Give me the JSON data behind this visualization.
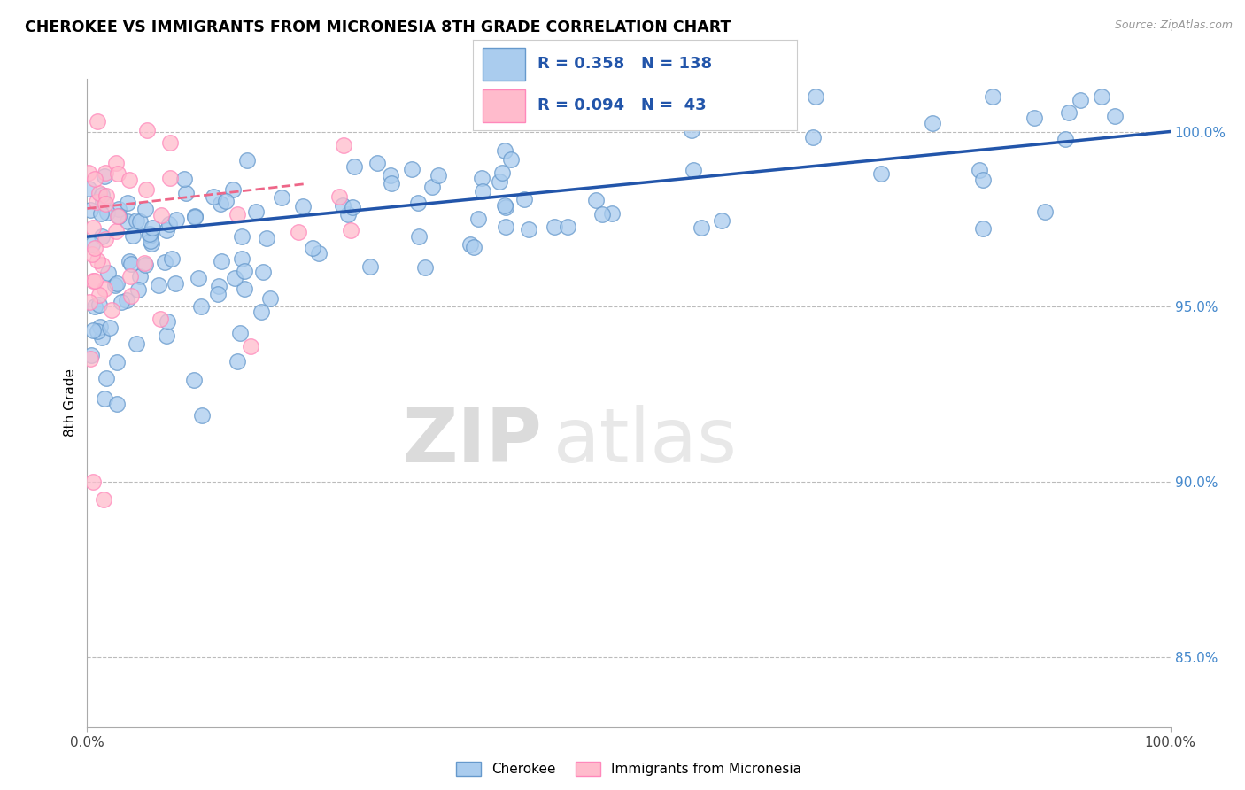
{
  "title": "CHEROKEE VS IMMIGRANTS FROM MICRONESIA 8TH GRADE CORRELATION CHART",
  "source": "Source: ZipAtlas.com",
  "ylabel": "8th Grade",
  "right_yticks": [
    85.0,
    90.0,
    95.0,
    100.0
  ],
  "legend_R1": "0.358",
  "legend_N1": "138",
  "legend_R2": "0.094",
  "legend_N2": " 43",
  "blue_color_face": "#AACCEE",
  "blue_color_edge": "#6699CC",
  "pink_color_face": "#FFBBCC",
  "pink_color_edge": "#FF88BB",
  "blue_line_color": "#2255AA",
  "pink_line_color": "#EE6688",
  "watermark_zip": "ZIP",
  "watermark_atlas": "atlas",
  "xlim": [
    0,
    100
  ],
  "ylim": [
    83.0,
    101.5
  ],
  "blue_trend_start": 97.0,
  "blue_trend_end": 100.0,
  "pink_trend_start": 97.8,
  "pink_trend_end": 98.5
}
